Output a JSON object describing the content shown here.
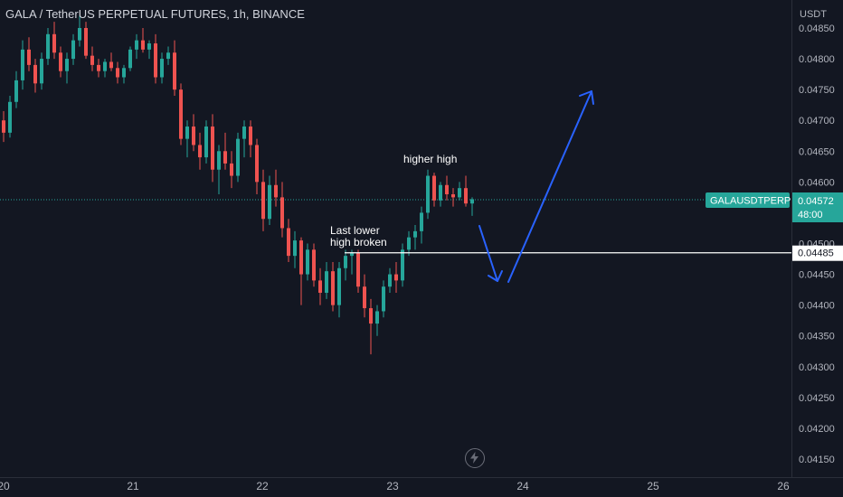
{
  "header": {
    "title": "GALA / TetherUS PERPETUAL FUTURES, 1h, BINANCE"
  },
  "colors": {
    "background": "#131722",
    "up": "#26a69a",
    "down": "#ef5350",
    "annotation_line": "#ffffff",
    "arrow": "#2962ff",
    "price_label_bg": "#26a69a"
  },
  "chart_data": {
    "type": "candlestick",
    "title": "GALA / TetherUS PERPETUAL FUTURES, 1h, BINANCE",
    "y_axis_label": "USDT",
    "y_ticks": [
      "0.04850",
      "0.04800",
      "0.04750",
      "0.04700",
      "0.04650",
      "0.04600",
      "0.04550",
      "0.04500",
      "0.04450",
      "0.04400",
      "0.04350",
      "0.04300",
      "0.04250",
      "0.04200",
      "0.04150"
    ],
    "x_ticks": [
      "20",
      "21",
      "22",
      "23",
      "24",
      "25",
      "26"
    ],
    "ylim": [
      0.04135,
      0.04875
    ],
    "grid": false,
    "symbol_label": "GALAUSDTPERP",
    "last_price": "0.04572",
    "countdown": "48:00",
    "level_label": "0.04485",
    "level_value": 0.04485,
    "annotations": [
      "Last lower high broken",
      "higher high"
    ],
    "candles": [
      [
        0.047,
        0.04715,
        0.04665,
        0.0468
      ],
      [
        0.0468,
        0.0474,
        0.04672,
        0.0473
      ],
      [
        0.0473,
        0.0478,
        0.0472,
        0.04765
      ],
      [
        0.04765,
        0.0483,
        0.0475,
        0.04815
      ],
      [
        0.04815,
        0.04835,
        0.0478,
        0.0479
      ],
      [
        0.0479,
        0.048,
        0.04745,
        0.0476
      ],
      [
        0.0476,
        0.0481,
        0.0475,
        0.048
      ],
      [
        0.048,
        0.0485,
        0.0479,
        0.0484
      ],
      [
        0.0484,
        0.0486,
        0.048,
        0.0481
      ],
      [
        0.0481,
        0.0482,
        0.0477,
        0.0478
      ],
      [
        0.0478,
        0.0481,
        0.0476,
        0.048
      ],
      [
        0.048,
        0.0484,
        0.0479,
        0.0483
      ],
      [
        0.0483,
        0.0487,
        0.0482,
        0.0485
      ],
      [
        0.0485,
        0.0486,
        0.048,
        0.04805
      ],
      [
        0.04805,
        0.0482,
        0.0478,
        0.0479
      ],
      [
        0.0479,
        0.048,
        0.0477,
        0.0478
      ],
      [
        0.0478,
        0.048,
        0.0477,
        0.04795
      ],
      [
        0.04795,
        0.0481,
        0.0478,
        0.04785
      ],
      [
        0.04785,
        0.04795,
        0.0476,
        0.0477
      ],
      [
        0.0477,
        0.0479,
        0.0476,
        0.04785
      ],
      [
        0.04785,
        0.0482,
        0.0478,
        0.04815
      ],
      [
        0.04815,
        0.0484,
        0.048,
        0.0483
      ],
      [
        0.0483,
        0.0485,
        0.0481,
        0.04815
      ],
      [
        0.04815,
        0.0483,
        0.048,
        0.04825
      ],
      [
        0.04825,
        0.0484,
        0.0476,
        0.0477
      ],
      [
        0.0477,
        0.0481,
        0.0476,
        0.048
      ],
      [
        0.048,
        0.0482,
        0.0479,
        0.0481
      ],
      [
        0.0481,
        0.0483,
        0.0474,
        0.0475
      ],
      [
        0.0475,
        0.0476,
        0.0466,
        0.0467
      ],
      [
        0.0467,
        0.047,
        0.0464,
        0.0469
      ],
      [
        0.0469,
        0.0471,
        0.0465,
        0.0466
      ],
      [
        0.0466,
        0.0468,
        0.0462,
        0.0464
      ],
      [
        0.0464,
        0.047,
        0.0463,
        0.0469
      ],
      [
        0.0469,
        0.0471,
        0.046,
        0.0462
      ],
      [
        0.0462,
        0.0466,
        0.0458,
        0.0465
      ],
      [
        0.0465,
        0.0468,
        0.0462,
        0.0463
      ],
      [
        0.0463,
        0.0465,
        0.0459,
        0.0461
      ],
      [
        0.0461,
        0.0468,
        0.046,
        0.0467
      ],
      [
        0.0467,
        0.047,
        0.0464,
        0.0469
      ],
      [
        0.0469,
        0.047,
        0.0464,
        0.0466
      ],
      [
        0.0466,
        0.0467,
        0.0458,
        0.046
      ],
      [
        0.046,
        0.0462,
        0.0452,
        0.0454
      ],
      [
        0.0454,
        0.0461,
        0.0453,
        0.04595
      ],
      [
        0.04595,
        0.0462,
        0.0456,
        0.04575
      ],
      [
        0.04575,
        0.046,
        0.0451,
        0.04525
      ],
      [
        0.04525,
        0.0454,
        0.0447,
        0.0448
      ],
      [
        0.0448,
        0.0452,
        0.0446,
        0.04505
      ],
      [
        0.04505,
        0.0451,
        0.044,
        0.0445
      ],
      [
        0.0445,
        0.045,
        0.0444,
        0.0449
      ],
      [
        0.0449,
        0.045,
        0.0443,
        0.0444
      ],
      [
        0.0444,
        0.0446,
        0.044,
        0.0442
      ],
      [
        0.0442,
        0.0447,
        0.0441,
        0.04455
      ],
      [
        0.04455,
        0.0447,
        0.0439,
        0.044
      ],
      [
        0.044,
        0.0447,
        0.0438,
        0.0446
      ],
      [
        0.0446,
        0.0449,
        0.0444,
        0.0448
      ],
      [
        0.0448,
        0.0449,
        0.0445,
        0.04485
      ],
      [
        0.04485,
        0.0449,
        0.0442,
        0.0443
      ],
      [
        0.0443,
        0.0445,
        0.0438,
        0.04395
      ],
      [
        0.04395,
        0.0441,
        0.0432,
        0.0437
      ],
      [
        0.0437,
        0.044,
        0.0435,
        0.0439
      ],
      [
        0.0439,
        0.0444,
        0.0438,
        0.0443
      ],
      [
        0.0443,
        0.0446,
        0.0442,
        0.0445
      ],
      [
        0.0445,
        0.0447,
        0.0442,
        0.0444
      ],
      [
        0.0444,
        0.045,
        0.0443,
        0.0449
      ],
      [
        0.0449,
        0.0452,
        0.0448,
        0.0451
      ],
      [
        0.0451,
        0.0453,
        0.0449,
        0.0452
      ],
      [
        0.0452,
        0.0456,
        0.045,
        0.0455
      ],
      [
        0.0455,
        0.0462,
        0.0454,
        0.0461
      ],
      [
        0.0461,
        0.04615,
        0.0456,
        0.0457
      ],
      [
        0.0457,
        0.046,
        0.0456,
        0.04595
      ],
      [
        0.04595,
        0.0461,
        0.0457,
        0.0458
      ],
      [
        0.0458,
        0.0459,
        0.0456,
        0.04575
      ],
      [
        0.04575,
        0.046,
        0.0457,
        0.0459
      ],
      [
        0.0459,
        0.0461,
        0.0456,
        0.04565
      ],
      [
        0.04565,
        0.04575,
        0.04545,
        0.04572
      ]
    ]
  }
}
